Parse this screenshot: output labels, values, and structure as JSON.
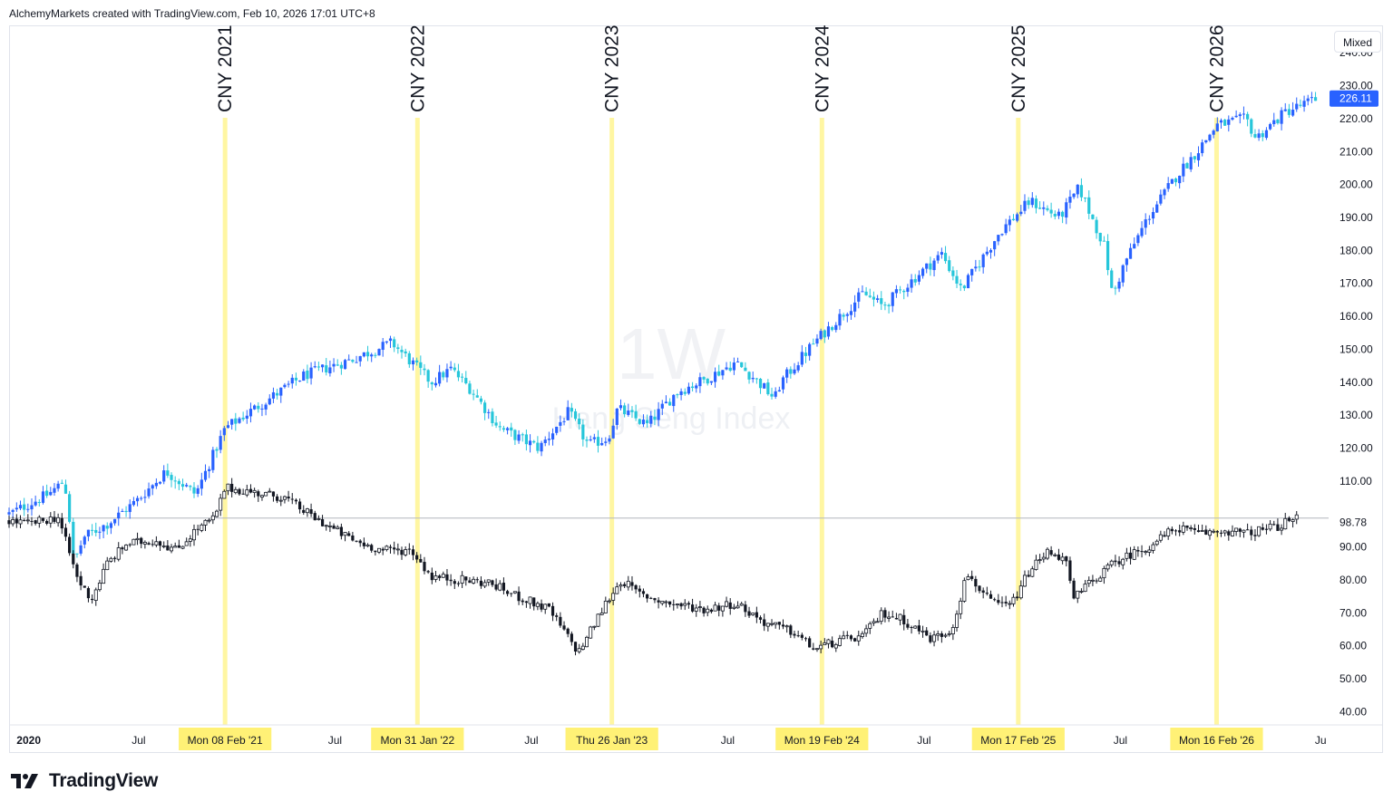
{
  "credit": "AlchemyMarkets created with TradingView.com, Feb 10, 2026 17:01 UTC+8",
  "scale_mode_label": "Mixed",
  "brand_label": "TradingView",
  "watermark": {
    "interval": "1W",
    "symbol": "Hang Seng Index"
  },
  "chart_data": {
    "type": "candlestick",
    "title": "",
    "timeframe": "1W",
    "x_axis_labels": [
      "2020",
      "Jul",
      "Mon 08 Feb '21",
      "Jul",
      "Mon 31 Jan '22",
      "Jul",
      "Thu 26 Jan '23",
      "Jul",
      "Mon 19 Feb '24",
      "Jul",
      "Mon 17 Feb '25",
      "Jul",
      "Mon 16 Feb '26",
      "Ju"
    ],
    "y_axis_labels": [
      "240.00",
      "230.00",
      "220.00",
      "210.00",
      "200.00",
      "190.00",
      "180.00",
      "170.00",
      "160.00",
      "150.00",
      "140.00",
      "130.00",
      "120.00",
      "110.00",
      "90.00",
      "80.00",
      "70.00",
      "60.00",
      "50.00",
      "40.00"
    ],
    "y_range": [
      36,
      245
    ],
    "baseline_value": 98.78,
    "price_labels": {
      "upper_series_last": "226.11",
      "baseline": "98.78"
    },
    "events": [
      {
        "label": "CNY 2021",
        "date_label": "Mon 08 Feb '21",
        "t": 1.1
      },
      {
        "label": "CNY 2022",
        "date_label": "Mon 31 Jan '22",
        "t": 2.08
      },
      {
        "label": "CNY 2023",
        "date_label": "Thu 26 Jan '23",
        "t": 3.07
      },
      {
        "label": "CNY 2024",
        "date_label": "Mon 19 Feb '24",
        "t": 4.14
      },
      {
        "label": "CNY 2025",
        "date_label": "Mon 17 Feb '25",
        "t": 5.14
      },
      {
        "label": "CNY 2026",
        "date_label": "Mon 16 Feb '26",
        "t": 6.15
      }
    ],
    "series": [
      {
        "name": "Upper series (blue)",
        "color_up": "#2962ff",
        "color_down": "#26c6da",
        "points": [
          [
            0,
            100
          ],
          [
            0.2,
            106
          ],
          [
            0.28,
            110
          ],
          [
            0.3,
            103
          ],
          [
            0.33,
            85
          ],
          [
            0.38,
            93
          ],
          [
            0.5,
            97
          ],
          [
            0.65,
            104
          ],
          [
            0.8,
            113
          ],
          [
            0.95,
            106
          ],
          [
            1.1,
            126
          ],
          [
            1.3,
            134
          ],
          [
            1.5,
            142
          ],
          [
            1.75,
            147
          ],
          [
            1.95,
            152
          ],
          [
            2.05,
            146
          ],
          [
            2.15,
            140
          ],
          [
            2.25,
            144
          ],
          [
            2.35,
            138
          ],
          [
            2.5,
            126
          ],
          [
            2.7,
            120
          ],
          [
            2.85,
            131
          ],
          [
            2.95,
            121
          ],
          [
            3.05,
            123
          ],
          [
            3.1,
            132
          ],
          [
            3.25,
            127
          ],
          [
            3.4,
            137
          ],
          [
            3.55,
            141
          ],
          [
            3.7,
            146
          ],
          [
            3.8,
            141
          ],
          [
            3.9,
            135
          ],
          [
            3.93,
            140
          ],
          [
            4.1,
            152
          ],
          [
            4.25,
            161
          ],
          [
            4.35,
            167
          ],
          [
            4.45,
            163
          ],
          [
            4.6,
            171
          ],
          [
            4.75,
            179
          ],
          [
            4.85,
            168
          ],
          [
            4.95,
            177
          ],
          [
            5.05,
            186
          ],
          [
            5.2,
            195
          ],
          [
            5.35,
            190
          ],
          [
            5.45,
            199
          ],
          [
            5.5,
            192
          ],
          [
            5.58,
            181
          ],
          [
            5.62,
            166
          ],
          [
            5.68,
            176
          ],
          [
            5.8,
            190
          ],
          [
            5.95,
            203
          ],
          [
            6.05,
            210
          ],
          [
            6.15,
            218
          ],
          [
            6.3,
            220
          ],
          [
            6.35,
            214
          ],
          [
            6.5,
            222
          ],
          [
            6.66,
            226
          ]
        ]
      },
      {
        "name": "Lower series (black)",
        "color": "#131722",
        "points": [
          [
            0,
            98
          ],
          [
            0.1,
            97
          ],
          [
            0.25,
            99
          ],
          [
            0.35,
            80
          ],
          [
            0.42,
            74
          ],
          [
            0.5,
            85
          ],
          [
            0.6,
            91
          ],
          [
            0.75,
            92
          ],
          [
            0.85,
            89
          ],
          [
            0.95,
            95
          ],
          [
            1.05,
            99
          ],
          [
            1.1,
            108
          ],
          [
            1.2,
            107
          ],
          [
            1.4,
            105
          ],
          [
            1.55,
            99
          ],
          [
            1.75,
            92
          ],
          [
            1.9,
            89
          ],
          [
            2.05,
            89
          ],
          [
            2.15,
            81
          ],
          [
            2.3,
            80
          ],
          [
            2.45,
            79
          ],
          [
            2.55,
            76
          ],
          [
            2.75,
            71
          ],
          [
            2.9,
            58
          ],
          [
            3.05,
            74
          ],
          [
            3.12,
            80
          ],
          [
            3.2,
            76
          ],
          [
            3.35,
            73
          ],
          [
            3.55,
            71
          ],
          [
            3.7,
            73
          ],
          [
            3.85,
            67
          ],
          [
            4.0,
            64
          ],
          [
            4.1,
            59
          ],
          [
            4.2,
            61
          ],
          [
            4.35,
            63
          ],
          [
            4.45,
            70
          ],
          [
            4.55,
            68
          ],
          [
            4.7,
            62
          ],
          [
            4.8,
            65
          ],
          [
            4.88,
            82
          ],
          [
            5.0,
            73
          ],
          [
            5.1,
            72
          ],
          [
            5.2,
            83
          ],
          [
            5.3,
            89
          ],
          [
            5.38,
            86
          ],
          [
            5.42,
            74
          ],
          [
            5.5,
            79
          ],
          [
            5.65,
            86
          ],
          [
            5.8,
            90
          ],
          [
            5.95,
            96
          ],
          [
            6.05,
            94
          ],
          [
            6.2,
            95
          ],
          [
            6.3,
            94
          ],
          [
            6.45,
            96
          ],
          [
            6.56,
            98.8
          ]
        ]
      }
    ]
  }
}
